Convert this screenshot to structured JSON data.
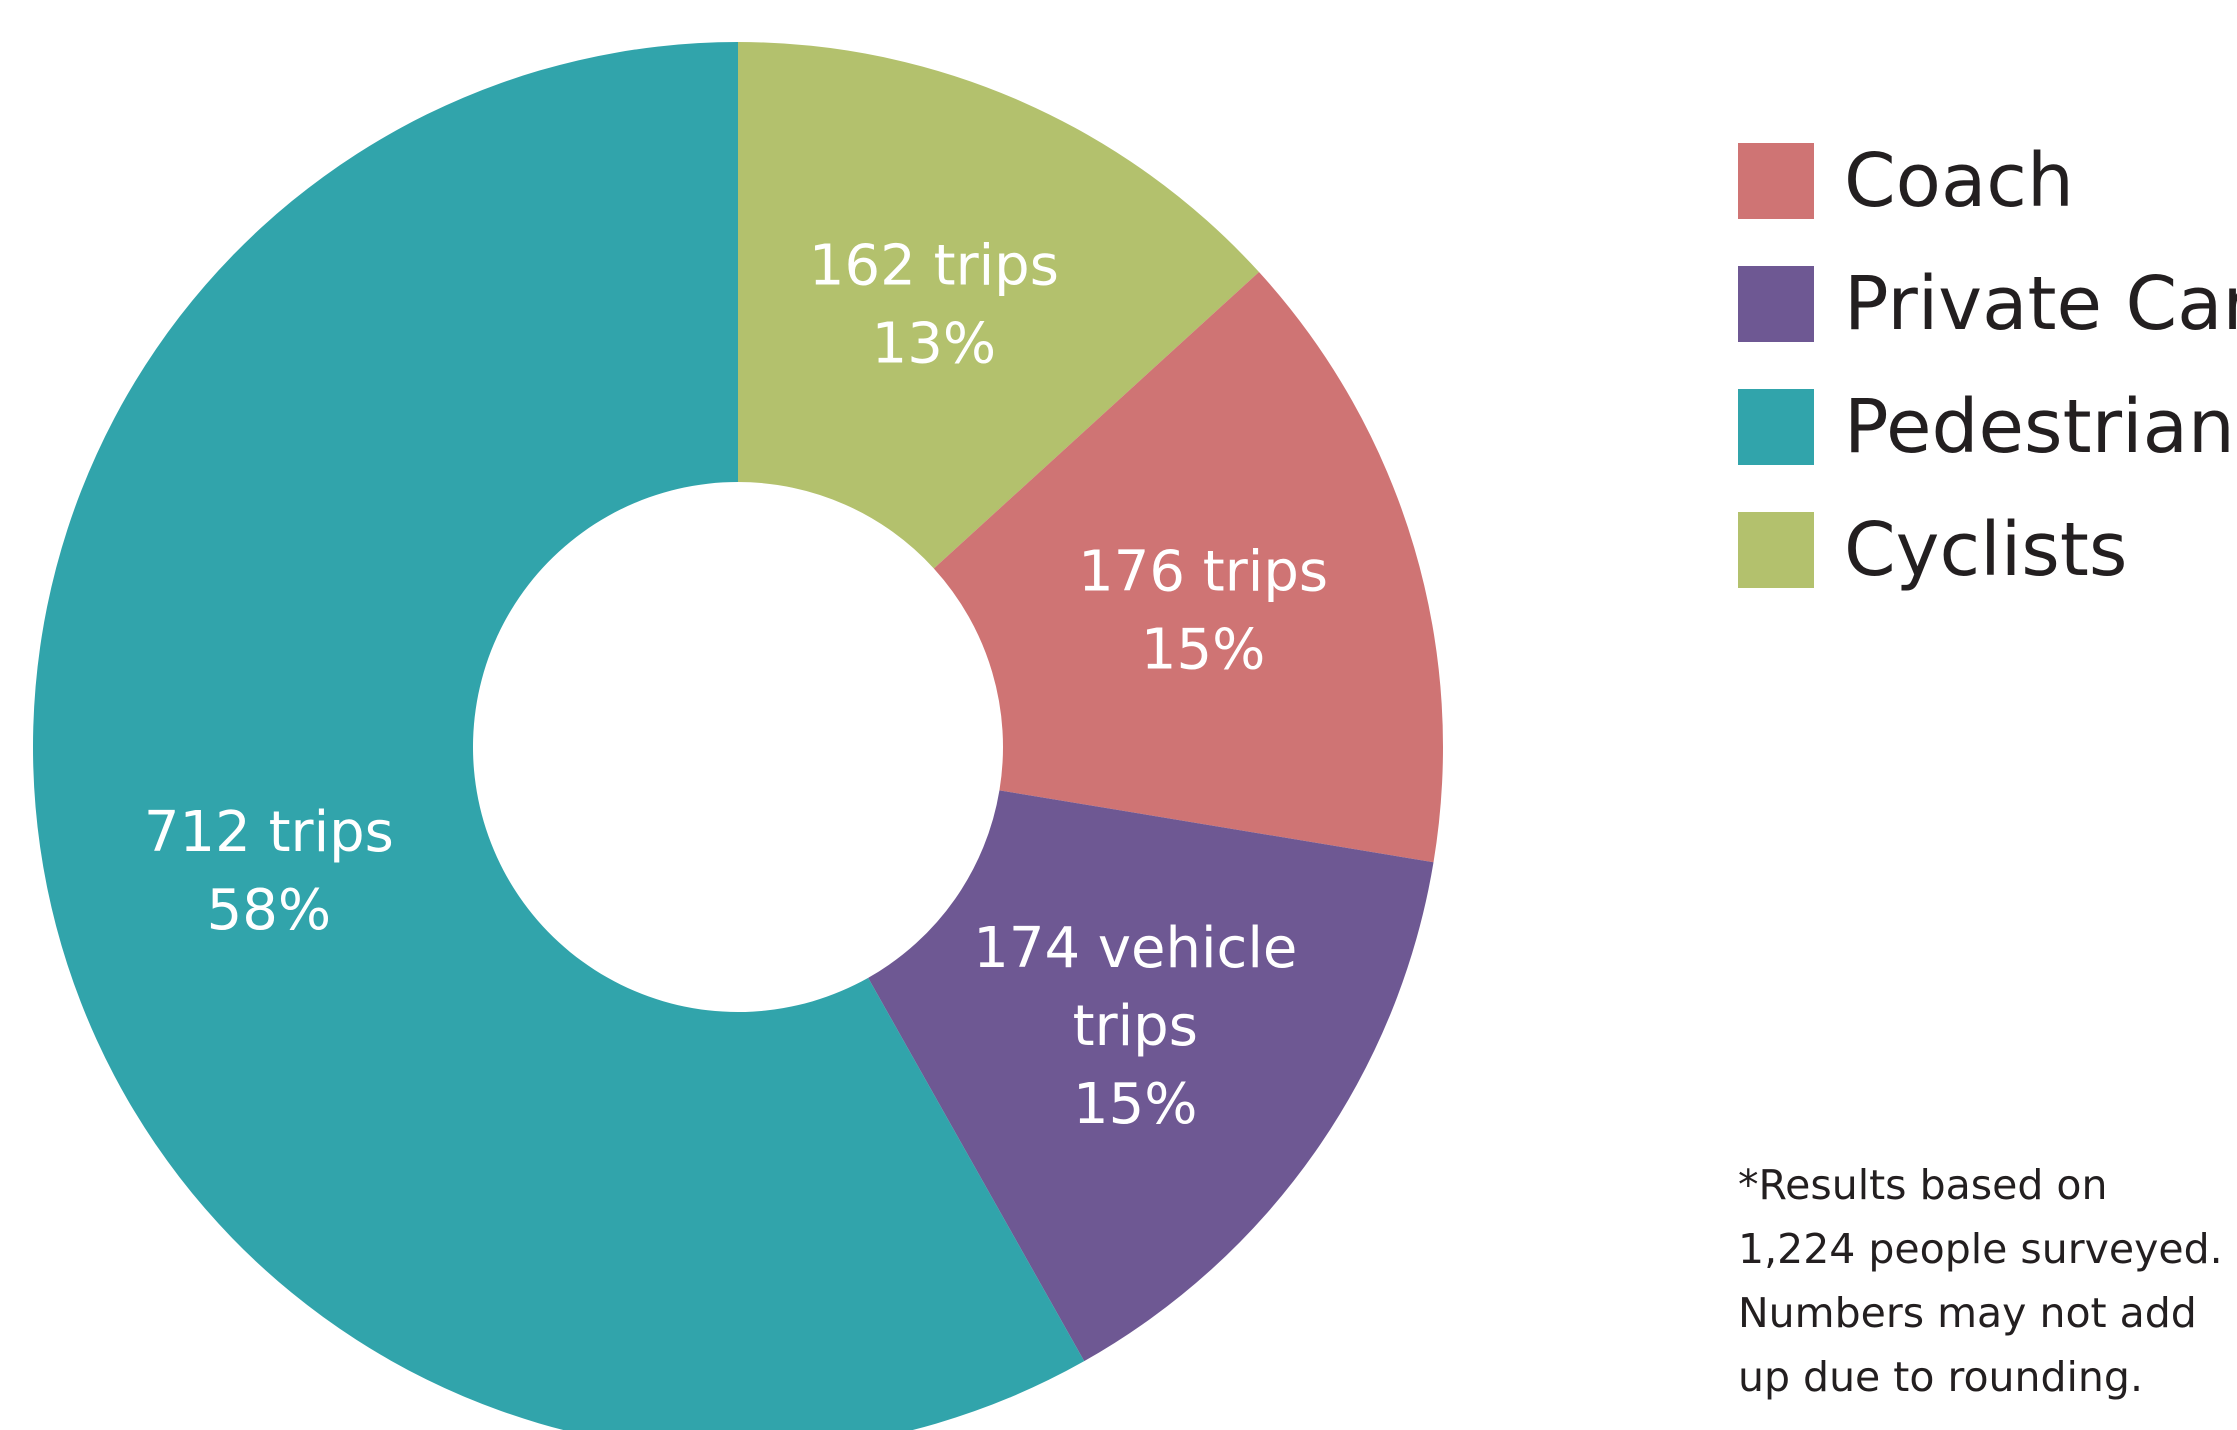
{
  "chart_data": {
    "type": "pie",
    "subtype": "donut",
    "legend_position": "right",
    "slices": [
      {
        "category": "Cyclists",
        "value": 162,
        "label_lines": [
          "162 trips",
          "13%"
        ],
        "color": "#b3c16d"
      },
      {
        "category": "Coach",
        "value": 176,
        "label_lines": [
          "176 trips",
          "15%"
        ],
        "color": "#cf7474"
      },
      {
        "category": "Private Car",
        "value": 174,
        "label_lines": [
          "174 vehicle",
          "trips",
          "15%"
        ],
        "color": "#6e5893"
      },
      {
        "category": "Pedestrians",
        "value": 712,
        "label_lines": [
          "712 trips",
          "58%"
        ],
        "color": "#31a4ab"
      }
    ],
    "legend": [
      {
        "label": "Coach",
        "color": "#cf7474"
      },
      {
        "label": "Private Car",
        "color": "#6e5893"
      },
      {
        "label": "Pedestrians",
        "color": "#31a4ab"
      },
      {
        "label": "Cyclists",
        "color": "#b3c16d"
      }
    ]
  },
  "footnote": {
    "lines": [
      "*Results based on",
      "1,224 people surveyed.",
      "Numbers may not add",
      "up due to rounding."
    ]
  }
}
